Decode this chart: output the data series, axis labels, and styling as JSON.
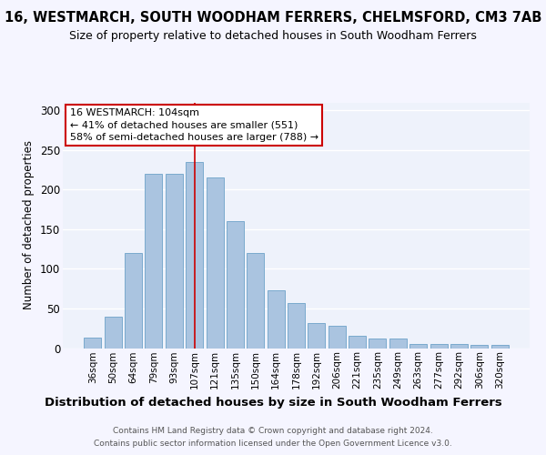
{
  "title": "16, WESTMARCH, SOUTH WOODHAM FERRERS, CHELMSFORD, CM3 7AB",
  "subtitle": "Size of property relative to detached houses in South Woodham Ferrers",
  "xlabel": "Distribution of detached houses by size in South Woodham Ferrers",
  "ylabel": "Number of detached properties",
  "categories": [
    "36sqm",
    "50sqm",
    "64sqm",
    "79sqm",
    "93sqm",
    "107sqm",
    "121sqm",
    "135sqm",
    "150sqm",
    "164sqm",
    "178sqm",
    "192sqm",
    "206sqm",
    "221sqm",
    "235sqm",
    "249sqm",
    "263sqm",
    "277sqm",
    "292sqm",
    "306sqm",
    "320sqm"
  ],
  "values": [
    13,
    40,
    120,
    220,
    220,
    235,
    215,
    160,
    120,
    73,
    57,
    32,
    28,
    15,
    12,
    12,
    5,
    5,
    5,
    4,
    4
  ],
  "bar_color": "#aac4e0",
  "bar_edge_color": "#7aaace",
  "background_color": "#eef2fb",
  "grid_color": "#ffffff",
  "vline_x_index": 5,
  "vline_color": "#cc0000",
  "annotation_text": "16 WESTMARCH: 104sqm\n← 41% of detached houses are smaller (551)\n58% of semi-detached houses are larger (788) →",
  "annotation_box_color": "#ffffff",
  "annotation_box_edge": "#cc0000",
  "ylim": [
    0,
    310
  ],
  "yticks": [
    0,
    50,
    100,
    150,
    200,
    250,
    300
  ],
  "fig_bg": "#f5f5ff",
  "footer_line1": "Contains HM Land Registry data © Crown copyright and database right 2024.",
  "footer_line2": "Contains public sector information licensed under the Open Government Licence v3.0.",
  "title_fontsize": 10.5,
  "subtitle_fontsize": 9.0,
  "ylabel_fontsize": 8.5,
  "xlabel_fontsize": 9.5,
  "tick_fontsize": 7.5,
  "ytick_fontsize": 8.5,
  "annotation_fontsize": 8.0,
  "footer_fontsize": 6.5
}
